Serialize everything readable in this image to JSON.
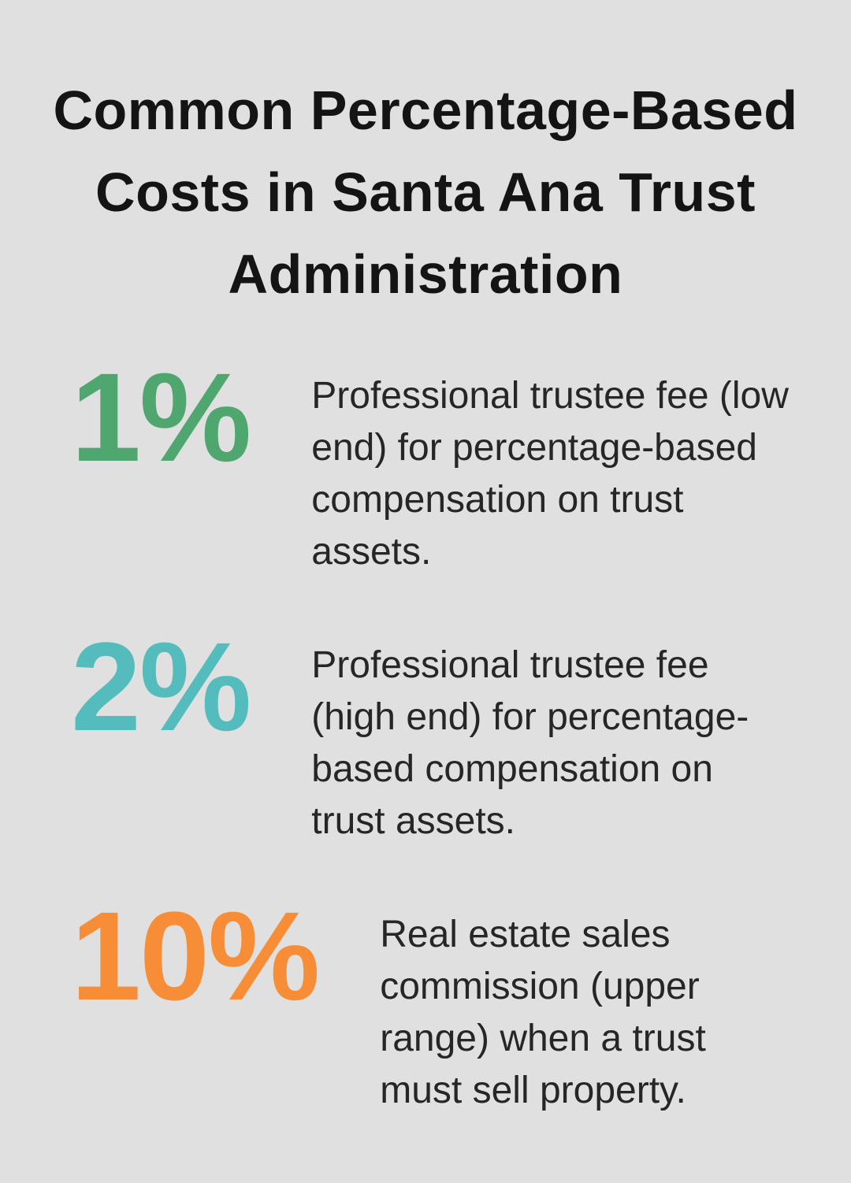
{
  "title": "Common Percentage-Based Costs in Santa Ana Trust Administration",
  "colors": {
    "background": "#dfe0df",
    "title_text": "#141414",
    "body_text": "#262626",
    "stat_green": "#4fa76f",
    "stat_teal": "#55bcbe",
    "stat_orange": "#f78e37"
  },
  "stats": [
    {
      "value": "1%",
      "color": "#4fa76f",
      "description": "Professional trustee fee (low end) for percentage-based compensation on trust assets.",
      "description_lines": [
        "Professional trustee fee (low",
        "end) for percentage-based",
        "compensation on trust",
        "assets."
      ]
    },
    {
      "value": "2%",
      "color": "#55bcbe",
      "description": "Professional trustee fee (high end) for percentage-based compensation on trust assets.",
      "description_lines": [
        "Professional trustee fee",
        "(high end) for percentage-",
        "based compensation on",
        "trust assets."
      ]
    },
    {
      "value": "10%",
      "color": "#f78e37",
      "description": "Real estate sales commission (upper range) when a trust must sell property.",
      "description_lines": [
        "Real estate sales",
        "commission (upper",
        "range) when a trust",
        "must sell property."
      ]
    }
  ],
  "chart_data": {
    "type": "table",
    "title": "Common Percentage-Based Costs in Santa Ana Trust Administration",
    "unit": "%",
    "values": [
      1,
      2,
      10
    ],
    "categories": [
      "Professional trustee fee (low end) for percentage-based compensation on trust assets.",
      "Professional trustee fee (high end) for percentage-based compensation on trust assets.",
      "Real estate sales commission (upper range) when a trust must sell property."
    ],
    "value_colors": [
      "#4fa76f",
      "#55bcbe",
      "#f78e37"
    ],
    "layout": "stat list, big colored percentage on left, description on right"
  }
}
